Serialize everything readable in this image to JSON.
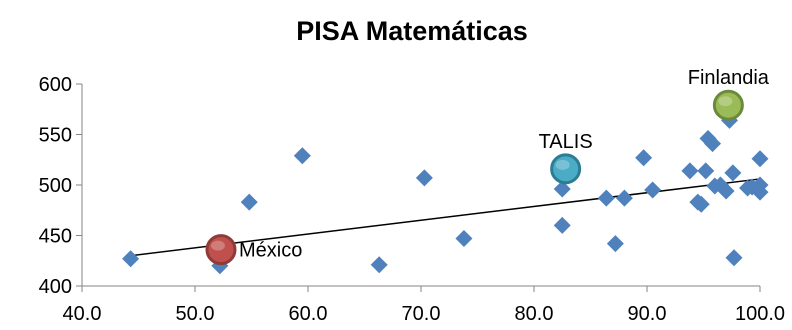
{
  "chart_data": {
    "type": "scatter",
    "title": "PISA Matemáticas",
    "xlabel": "",
    "ylabel": "",
    "xlim": [
      40,
      100
    ],
    "ylim": [
      400,
      600
    ],
    "x_ticks": [
      40,
      50,
      60,
      70,
      80,
      90,
      100
    ],
    "x_tick_labels": [
      "40.0",
      "50.0",
      "60.0",
      "70.0",
      "80.0",
      "90.0",
      "100.0"
    ],
    "y_ticks": [
      400,
      450,
      500,
      550,
      600
    ],
    "y_tick_labels": [
      "400",
      "450",
      "500",
      "550",
      "600"
    ],
    "grid": false,
    "legend": "none",
    "marker_color": "#4f81bd",
    "points": [
      {
        "x": 44.3,
        "y": 427
      },
      {
        "x": 52.2,
        "y": 420
      },
      {
        "x": 54.8,
        "y": 483
      },
      {
        "x": 59.5,
        "y": 529
      },
      {
        "x": 66.3,
        "y": 421
      },
      {
        "x": 70.3,
        "y": 507
      },
      {
        "x": 73.8,
        "y": 447
      },
      {
        "x": 82.5,
        "y": 460
      },
      {
        "x": 82.5,
        "y": 496
      },
      {
        "x": 86.4,
        "y": 487
      },
      {
        "x": 87.2,
        "y": 442
      },
      {
        "x": 88.0,
        "y": 487
      },
      {
        "x": 89.7,
        "y": 527
      },
      {
        "x": 90.5,
        "y": 495
      },
      {
        "x": 93.8,
        "y": 514
      },
      {
        "x": 94.5,
        "y": 483
      },
      {
        "x": 94.8,
        "y": 481
      },
      {
        "x": 95.2,
        "y": 514
      },
      {
        "x": 95.4,
        "y": 546
      },
      {
        "x": 95.8,
        "y": 541
      },
      {
        "x": 96.0,
        "y": 499
      },
      {
        "x": 96.5,
        "y": 500
      },
      {
        "x": 97.0,
        "y": 494
      },
      {
        "x": 97.3,
        "y": 564
      },
      {
        "x": 97.6,
        "y": 512
      },
      {
        "x": 97.7,
        "y": 428
      },
      {
        "x": 98.9,
        "y": 497
      },
      {
        "x": 99.3,
        "y": 498
      },
      {
        "x": 100.0,
        "y": 526
      },
      {
        "x": 100.0,
        "y": 493
      },
      {
        "x": 100.0,
        "y": 500
      }
    ],
    "trendline": {
      "x": [
        44.3,
        100.0
      ],
      "y": [
        430,
        506
      ],
      "color": "#000000"
    },
    "highlights": [
      {
        "label": "México",
        "x": 52.3,
        "y": 436,
        "color": "#c0504d",
        "edge": "#8e3b39",
        "label_position": "right"
      },
      {
        "label": "TALIS",
        "x": 82.8,
        "y": 516,
        "color": "#4bacc6",
        "edge": "#2c7d93",
        "label_position": "above"
      },
      {
        "label": "Finlandia",
        "x": 97.2,
        "y": 579,
        "color": "#9bbb59",
        "edge": "#6b8a3a",
        "label_position": "above"
      }
    ]
  }
}
